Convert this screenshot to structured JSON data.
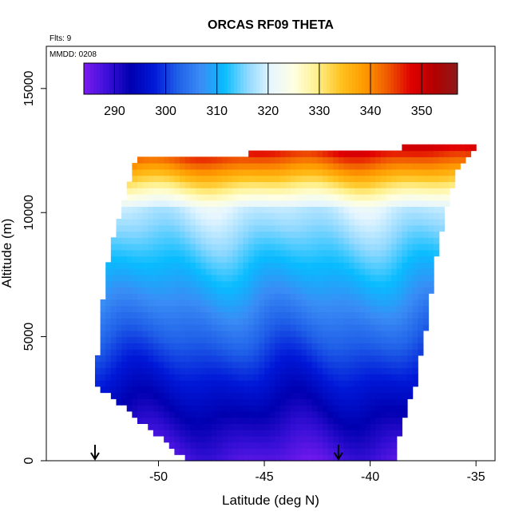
{
  "chart_data": {
    "type": "heatmap",
    "title": "ORCAS RF09 THETA",
    "note_flts": "Flts: 9",
    "note_mmdd": "MMDD: 0208",
    "xlabel": "Latitude (deg N)",
    "ylabel": "Altitude (m)",
    "xlim": [
      -55.3,
      -34.1
    ],
    "ylim": [
      0,
      16700
    ],
    "xticks": [
      -50,
      -45,
      -40,
      -35
    ],
    "xtick_labels": [
      "-50",
      "-45",
      "-40",
      "-35"
    ],
    "yticks": [
      0,
      5000,
      10000,
      15000
    ],
    "ytick_labels": [
      "0",
      "5000",
      "10000",
      "15000"
    ],
    "colorbar": {
      "min": 284,
      "max": 357,
      "ticks": [
        290,
        300,
        310,
        320,
        330,
        340,
        350
      ],
      "tick_labels": [
        "290",
        "300",
        "310",
        "320",
        "330",
        "340",
        "350"
      ],
      "colors": [
        "#7a1cf0",
        "#3a10d8",
        "#0000b0",
        "#0018d8",
        "#1f5fe8",
        "#3a8cf5",
        "#08bcff",
        "#8ed8ff",
        "#e6f6ff",
        "#ffffe0",
        "#fff08a",
        "#ffc21e",
        "#ff9a00",
        "#f05a00",
        "#e00000",
        "#b30000",
        "#8c1a1a"
      ]
    },
    "field": {
      "lat_range": [
        -53.0,
        -35.1
      ],
      "alt_range": [
        0,
        12700
      ],
      "surface_theta": 287,
      "lapse_k_per_km": 3.2,
      "top_alt": [
        [
          -53.0,
          3100
        ],
        [
          -52.7,
          6000
        ],
        [
          -52.3,
          8500
        ],
        [
          -51.5,
          11000
        ],
        [
          -51.0,
          12200
        ],
        [
          -45.0,
          12400
        ],
        [
          -38.8,
          12400
        ],
        [
          -38.4,
          12700
        ],
        [
          -35.1,
          12700
        ]
      ],
      "bottom_alt": [
        [
          -53.0,
          3100
        ],
        [
          -51.3,
          1900
        ],
        [
          -49.5,
          700
        ],
        [
          -48.7,
          0
        ],
        [
          -38.8,
          0
        ],
        [
          -38.6,
          1200
        ],
        [
          -37.9,
          3000
        ],
        [
          -37.3,
          5600
        ],
        [
          -36.8,
          8600
        ],
        [
          -36.0,
          11500
        ],
        [
          -35.1,
          12500
        ]
      ]
    },
    "arrows_lat": [
      -53.0,
      -41.5
    ]
  }
}
